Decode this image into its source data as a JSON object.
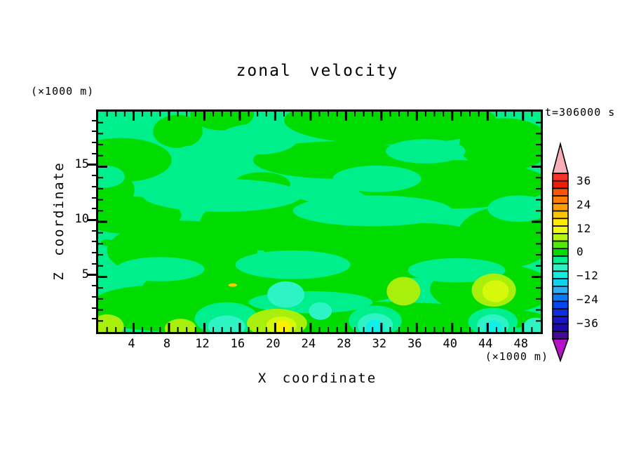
{
  "title": "zonal velocity",
  "annotations": {
    "time_label": "t=306000 s",
    "z_units_label": "(×1000 m)",
    "x_units_label": "(×1000 m)"
  },
  "axes": {
    "x": {
      "label": "X coordinate",
      "range": [
        0,
        50
      ],
      "major_step": 4,
      "minor_step": 1,
      "major_tick_labels": [
        "4",
        "8",
        "12",
        "16",
        "20",
        "24",
        "28",
        "32",
        "36",
        "40",
        "44",
        "48"
      ]
    },
    "z": {
      "label": "Z coordinate",
      "range": [
        0,
        20
      ],
      "major_step": 5,
      "minor_step": 1,
      "major_tick_labels": [
        "5",
        "10",
        "15"
      ]
    }
  },
  "colorbar": {
    "labels": [
      "36",
      "24",
      "12",
      "0",
      "−12",
      "−24",
      "−36"
    ],
    "top_triangle_color": "#f8aeb6",
    "bottom_triangle_color": "#b414c8",
    "segment_colors": [
      "#f8322a",
      "#ea1e07",
      "#f85708",
      "#ff7f00",
      "#ff9e00",
      "#ffc400",
      "#ffea00",
      "#eefb10",
      "#b5f310",
      "#52e807",
      "#00dc00",
      "#00ef8d",
      "#2ef3c4",
      "#12eedd",
      "#0fd2f0",
      "#2aaef4",
      "#0d79f3",
      "#0547ee",
      "#0b2fe0",
      "#1a16c6",
      "#1d0da6",
      "#430a9a"
    ]
  },
  "chart_data": {
    "type": "filled-contour",
    "title": "zonal velocity",
    "time_annotation": "t=306000 s",
    "xlabel": "X coordinate",
    "zlabel": "Z coordinate",
    "x_units": "(×1000 m)",
    "z_units": "(×1000 m)",
    "x_range": [
      0,
      50
    ],
    "z_range": [
      0,
      20
    ],
    "contour_interval": 4,
    "colorbar_tick_values": [
      36,
      24,
      12,
      0,
      -12,
      -24,
      -36
    ],
    "field_summary": "Zonal velocity field mostly between -4 and +4: wavy horizontal bands of 0..4 (green) over a -4..0 (spring green) background; small -8..-4 turquoise and -12..-8 cyan pockets near the bottom boundary; small +4..+12 chartreuse/yellow maxima near the bottom boundary.",
    "field": {
      "background_color": "#00ef8d",
      "band_color": "#00dc00",
      "green_bands": [
        [
          2.5,
          15.6,
          5.8,
          2.0
        ],
        [
          9.0,
          18.2,
          2.8,
          1.5
        ],
        [
          14.0,
          19.8,
          3.6,
          1.5
        ],
        [
          33.0,
          19.2,
          12.0,
          2.2
        ],
        [
          46.0,
          17.0,
          5.2,
          2.4
        ],
        [
          27.0,
          15.6,
          9.5,
          1.7
        ],
        [
          40.0,
          13.4,
          11.0,
          2.2
        ],
        [
          3.6,
          10.6,
          5.8,
          1.7
        ],
        [
          1.5,
          12.9,
          2.6,
          1.6
        ],
        [
          9.5,
          7.4,
          8.5,
          2.7
        ],
        [
          19.0,
          9.9,
          7.5,
          2.5
        ],
        [
          26.5,
          7.9,
          8.0,
          2.3
        ],
        [
          36.0,
          7.4,
          9.5,
          2.5
        ],
        [
          46.0,
          8.6,
          5.5,
          2.8
        ],
        [
          14.0,
          4.0,
          9.0,
          2.0
        ],
        [
          28.0,
          4.4,
          7.5,
          1.8
        ],
        [
          44.5,
          3.9,
          7.0,
          2.3
        ],
        [
          25.0,
          1.2,
          26.0,
          1.6
        ],
        [
          6.0,
          2.3,
          7.0,
          1.9
        ],
        [
          18.5,
          13.4,
          3.2,
          1.1
        ]
      ],
      "background_streaks": [
        [
          14.0,
          12.4,
          9.0,
          1.5
        ],
        [
          31.0,
          11.0,
          9.0,
          1.4
        ],
        [
          22.0,
          6.1,
          6.5,
          1.3
        ],
        [
          40.5,
          5.6,
          5.5,
          1.1
        ],
        [
          7.0,
          5.7,
          5.0,
          1.1
        ],
        [
          47.5,
          11.2,
          3.5,
          1.2
        ],
        [
          24.0,
          2.7,
          7.0,
          1.0
        ],
        [
          31.5,
          13.9,
          5.0,
          1.2
        ],
        [
          0.8,
          14.1,
          2.2,
          1.0
        ],
        [
          18.0,
          17.5,
          4.5,
          1.4
        ],
        [
          37.0,
          16.4,
          4.5,
          1.1
        ],
        [
          14.5,
          1.2,
          3.6,
          1.5
        ],
        [
          31.3,
          1.0,
          3.0,
          1.4
        ],
        [
          44.6,
          0.9,
          2.8,
          1.3
        ],
        [
          10.5,
          16.0,
          2.0,
          0.9
        ]
      ],
      "features": [
        {
          "color": "#a8f00c",
          "e": [
            1.0,
            0.5,
            1.9,
            1.1
          ]
        },
        {
          "color": "#a8f00c",
          "e": [
            9.3,
            0.3,
            1.8,
            0.9
          ]
        },
        {
          "color": "#a8f00c",
          "e": [
            20.2,
            0.8,
            3.4,
            1.3
          ]
        },
        {
          "color": "#a8f00c",
          "e": [
            34.5,
            3.7,
            1.9,
            1.3
          ]
        },
        {
          "color": "#a8f00c",
          "e": [
            44.7,
            3.8,
            2.5,
            1.5
          ]
        },
        {
          "color": "#d6f80a",
          "e": [
            20.7,
            0.6,
            1.7,
            0.8
          ]
        },
        {
          "color": "#d6f80a",
          "e": [
            44.9,
            3.7,
            1.5,
            1.0
          ]
        },
        {
          "color": "#fff000",
          "e": [
            20.8,
            0.5,
            0.9,
            0.5
          ]
        },
        {
          "color": "#2ef3c4",
          "e": [
            14.5,
            0.5,
            2.1,
            1.0
          ]
        },
        {
          "color": "#2ef3c4",
          "e": [
            21.2,
            3.4,
            2.1,
            1.2
          ]
        },
        {
          "color": "#2ef3c4",
          "e": [
            31.3,
            0.6,
            2.0,
            1.1
          ]
        },
        {
          "color": "#2ef3c4",
          "e": [
            44.6,
            0.6,
            1.8,
            1.0
          ]
        },
        {
          "color": "#2ef3c4",
          "e": [
            25.1,
            1.9,
            1.3,
            0.8
          ]
        },
        {
          "color": "#2ef3c4",
          "e": [
            49.4,
            0.4,
            1.4,
            0.9
          ]
        },
        {
          "color": "#0ff0ea",
          "e": [
            31.3,
            0.4,
            1.1,
            0.7
          ]
        },
        {
          "color": "#0ff0ea",
          "e": [
            44.6,
            0.4,
            1.0,
            0.6
          ]
        },
        {
          "color": "#00dc00",
          "e": [
            1.0,
            8.1,
            0.7,
            0.3
          ]
        },
        {
          "color": "#ffc800",
          "e": [
            15.2,
            4.25,
            0.5,
            0.15
          ]
        },
        {
          "color": "#00dc00",
          "e": [
            27.2,
            4.6,
            0.4,
            0.3
          ]
        }
      ]
    }
  }
}
